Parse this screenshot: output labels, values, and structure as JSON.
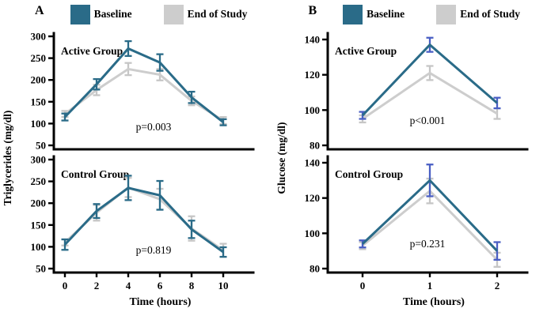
{
  "figure": {
    "background": "#ffffff",
    "panels": [
      {
        "letter": "A",
        "ylabel": "Triglycerides (mg/dl)",
        "xlabel": "Time (hours)",
        "legend": [
          {
            "label": "Baseline",
            "color": "#2a6b88"
          },
          {
            "label": "End of Study",
            "color": "#cdcdcd"
          }
        ]
      },
      {
        "letter": "B",
        "ylabel": "Glucose (mg/dl)",
        "xlabel": "Time (hours)",
        "legend": [
          {
            "label": "Baseline",
            "color": "#2a6b88"
          },
          {
            "label": "End of Study",
            "color": "#cdcdcd"
          }
        ]
      }
    ]
  },
  "chart_data": [
    {
      "type": "line",
      "panel": "A",
      "title": "Active Group",
      "p_label": "p=0.003",
      "x": [
        0,
        2,
        4,
        6,
        8,
        10
      ],
      "xticklabels": [
        "0",
        "2",
        "4",
        "6",
        "8",
        "10"
      ],
      "show_xticks": false,
      "ylim": [
        50,
        300
      ],
      "yticks": [
        300,
        250,
        200,
        150,
        100,
        50
      ],
      "x_padding": [
        14,
        38
      ],
      "grid": false,
      "series": [
        {
          "name": "Baseline",
          "color": "#2a6b88",
          "error_color": "#2a6b88",
          "values": [
            115,
            190,
            272,
            240,
            160,
            103
          ],
          "errors": [
            8,
            12,
            17,
            19,
            13,
            7
          ]
        },
        {
          "name": "End of Study",
          "color": "#cdcdcd",
          "error_color": "#c6c6c6",
          "values": [
            122,
            177,
            225,
            212,
            152,
            107
          ],
          "errors": [
            7,
            12,
            14,
            13,
            10,
            8
          ]
        }
      ]
    },
    {
      "type": "line",
      "panel": "A",
      "title": "Control Group",
      "p_label": "p=0.819",
      "x": [
        0,
        2,
        4,
        6,
        8,
        10
      ],
      "xticklabels": [
        "0",
        "2",
        "4",
        "6",
        "8",
        "10"
      ],
      "show_xticks": true,
      "ylim": [
        50,
        300
      ],
      "yticks": [
        300,
        250,
        200,
        150,
        100,
        50
      ],
      "x_padding": [
        14,
        38
      ],
      "grid": false,
      "series": [
        {
          "name": "Baseline",
          "color": "#2a6b88",
          "error_color": "#2a6b88",
          "values": [
            105,
            182,
            235,
            218,
            140,
            88
          ],
          "errors": [
            12,
            16,
            28,
            33,
            20,
            11
          ]
        },
        {
          "name": "End of Study",
          "color": "#cdcdcd",
          "error_color": "#c6c6c6",
          "values": [
            110,
            178,
            236,
            209,
            142,
            92
          ],
          "errors": [
            7,
            18,
            22,
            24,
            28,
            15
          ]
        }
      ]
    },
    {
      "type": "line",
      "panel": "B",
      "title": "Active Group",
      "p_label": "p<0.001",
      "x": [
        0,
        1,
        2
      ],
      "xticklabels": [
        "0",
        "1",
        "2"
      ],
      "show_xticks": false,
      "ylim": [
        80,
        140
      ],
      "yticks": [
        140,
        120,
        100,
        80
      ],
      "x_padding": [
        44,
        38
      ],
      "grid": false,
      "series": [
        {
          "name": "Baseline",
          "color": "#2a6b88",
          "error_color": "#4a5fc4",
          "values": [
            97,
            137,
            104
          ],
          "errors": [
            2,
            4,
            3
          ]
        },
        {
          "name": "End of Study",
          "color": "#cdcdcd",
          "error_color": "#c6c6c6",
          "values": [
            95,
            121,
            98
          ],
          "errors": [
            2,
            4,
            3
          ]
        }
      ]
    },
    {
      "type": "line",
      "panel": "B",
      "title": "Control Group",
      "p_label": "p=0.231",
      "x": [
        0,
        1,
        2
      ],
      "xticklabels": [
        "0",
        "1",
        "2"
      ],
      "show_xticks": true,
      "ylim": [
        80,
        140
      ],
      "yticks": [
        140,
        120,
        100,
        80
      ],
      "x_padding": [
        44,
        38
      ],
      "grid": false,
      "series": [
        {
          "name": "Baseline",
          "color": "#2a6b88",
          "error_color": "#4a5fc4",
          "values": [
            94,
            130,
            90
          ],
          "errors": [
            2,
            9,
            5
          ]
        },
        {
          "name": "End of Study",
          "color": "#cdcdcd",
          "error_color": "#c6c6c6",
          "values": [
            93,
            124,
            85
          ],
          "errors": [
            2,
            7,
            4
          ]
        }
      ]
    }
  ]
}
